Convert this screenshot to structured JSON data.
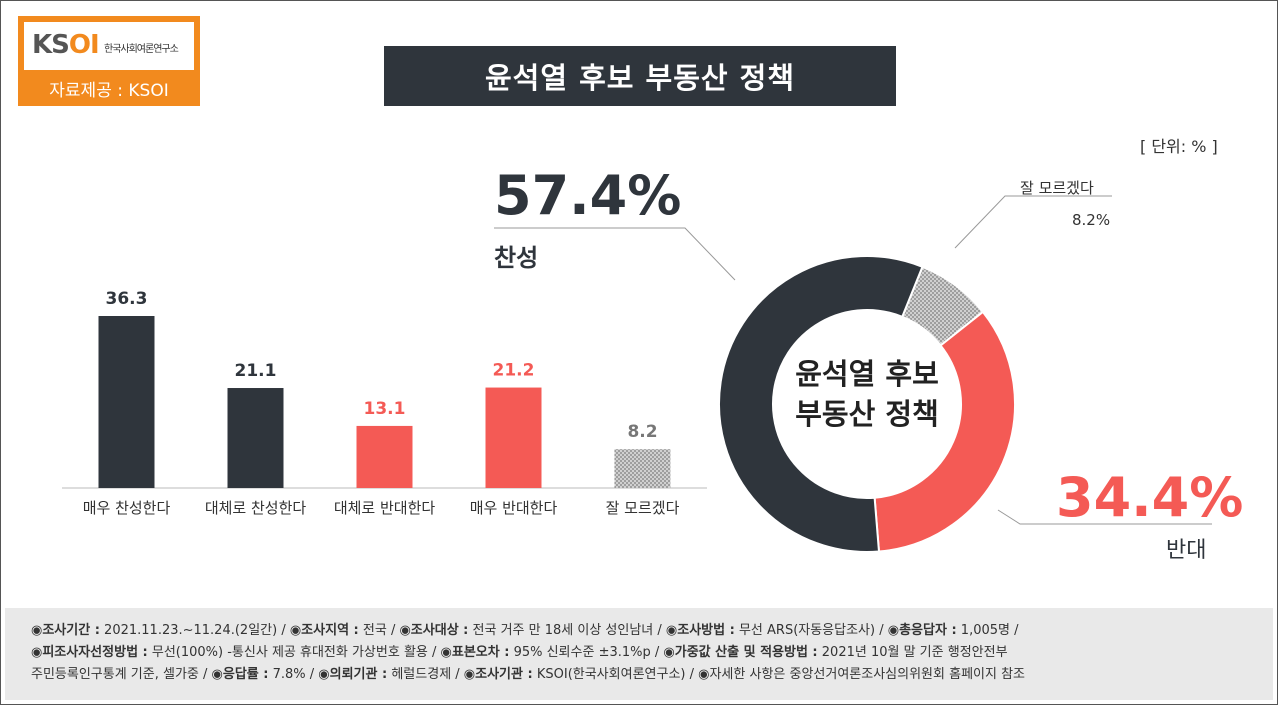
{
  "logo": {
    "brand": "KSOI",
    "sub": "한국사회여론연구소",
    "source": "자료제공 : KSOI"
  },
  "title": "윤석열 후보 부동산 정책",
  "unit": "[ 단위: % ]",
  "summary": {
    "agree_pct": "57.4%",
    "agree_label": "찬성",
    "oppose_pct": "34.4%",
    "oppose_label": "반대",
    "dk_label": "잘 모르겠다",
    "dk_val": "8.2%",
    "center_line1": "윤석열 후보",
    "center_line2": "부동산 정책"
  },
  "chart_data": [
    {
      "type": "bar",
      "categories": [
        "매우 찬성한다",
        "대체로 찬성한다",
        "대체로 반대한다",
        "매우 반대한다",
        "잘 모르겠다"
      ],
      "values": [
        36.3,
        21.1,
        13.1,
        21.2,
        8.2
      ],
      "value_labels": [
        "36.3",
        "21.1",
        "13.1",
        "21.2",
        "8.2"
      ],
      "colors": [
        "#2f353c",
        "#2f353c",
        "#f45a55",
        "#f45a55",
        "#b5b5b5"
      ],
      "ylim": [
        0,
        36.3
      ]
    },
    {
      "type": "pie",
      "donut": true,
      "labels": [
        "잘 모르겠다",
        "반대",
        "찬성"
      ],
      "values": [
        8.2,
        34.4,
        57.4
      ],
      "colors": [
        "#cfcfcf",
        "#f45a55",
        "#2f353c"
      ]
    }
  ],
  "footer": {
    "line1": [
      {
        "k": "◉조사기간 :",
        "v": " 2021.11.23.~11.24.(2일간)  / "
      },
      {
        "k": "◉조사지역 :",
        "v": " 전국 / "
      },
      {
        "k": "◉조사대상 :",
        "v": " 전국 거주 만 18세 이상 성인남녀 / "
      },
      {
        "k": "◉조사방법 :",
        "v": " 무선 ARS(자동응답조사) / "
      },
      {
        "k": "◉총응답자 :",
        "v": " 1,005명 /"
      }
    ],
    "line2": [
      {
        "k": "◉피조사자선정방법 :",
        "v": " 무선(100%) -통신사 제공 휴대전화 가상번호 활용 / "
      },
      {
        "k": "◉표본오차 :",
        "v": " 95% 신뢰수준 ±3.1%p / "
      },
      {
        "k": "◉가중값 산출 및 적용방법 :",
        "v": " 2021년 10월 말 기준 행정안전부"
      }
    ],
    "line3": [
      {
        "k": "",
        "v": "주민등록인구통계 기준, 셀가중 / "
      },
      {
        "k": "◉응답률 :",
        "v": " 7.8% / "
      },
      {
        "k": "◉의뢰기관 :",
        "v": " 헤럴드경제 / "
      },
      {
        "k": "◉조사기관 :",
        "v": " KSOI(한국사회여론연구소) / "
      },
      {
        "k": "",
        "v": "◉자세한 사항은 중앙선거여론조사심의위원회 홈페이지 참조"
      }
    ]
  }
}
